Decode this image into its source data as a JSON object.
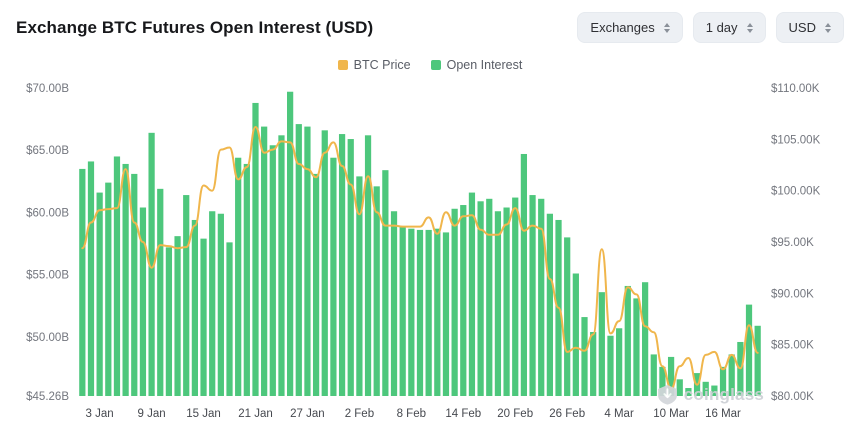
{
  "header": {
    "title": "Exchange BTC Futures Open Interest (USD)",
    "controls": [
      {
        "label": "Exchanges"
      },
      {
        "label": "1 day"
      },
      {
        "label": "USD"
      }
    ]
  },
  "legend": [
    {
      "label": "BTC Price",
      "color": "#F0B64C"
    },
    {
      "label": "Open Interest",
      "color": "#4DC77C"
    }
  ],
  "watermark": "coinglass",
  "chart_data": {
    "type": "combo",
    "title": "Exchange BTC Futures Open Interest (USD)",
    "legend_position": "top",
    "grid": false,
    "x": [
      "1 Jan",
      "2 Jan",
      "3 Jan",
      "4 Jan",
      "5 Jan",
      "6 Jan",
      "7 Jan",
      "8 Jan",
      "9 Jan",
      "10 Jan",
      "11 Jan",
      "12 Jan",
      "13 Jan",
      "14 Jan",
      "15 Jan",
      "16 Jan",
      "17 Jan",
      "18 Jan",
      "19 Jan",
      "20 Jan",
      "21 Jan",
      "22 Jan",
      "23 Jan",
      "24 Jan",
      "25 Jan",
      "26 Jan",
      "27 Jan",
      "28 Jan",
      "29 Jan",
      "30 Jan",
      "31 Jan",
      "1 Feb",
      "2 Feb",
      "3 Feb",
      "4 Feb",
      "5 Feb",
      "6 Feb",
      "7 Feb",
      "8 Feb",
      "9 Feb",
      "10 Feb",
      "11 Feb",
      "12 Feb",
      "13 Feb",
      "14 Feb",
      "15 Feb",
      "16 Feb",
      "17 Feb",
      "18 Feb",
      "19 Feb",
      "20 Feb",
      "21 Feb",
      "22 Feb",
      "23 Feb",
      "24 Feb",
      "25 Feb",
      "26 Feb",
      "27 Feb",
      "28 Feb",
      "1 Mar",
      "2 Mar",
      "3 Mar",
      "4 Mar",
      "5 Mar",
      "6 Mar",
      "7 Mar",
      "8 Mar",
      "9 Mar",
      "10 Mar",
      "11 Mar",
      "12 Mar",
      "13 Mar",
      "14 Mar",
      "15 Mar",
      "16 Mar",
      "17 Mar",
      "18 Mar",
      "19 Mar",
      "20 Mar"
    ],
    "x_tick_labels": [
      "3 Jan",
      "9 Jan",
      "15 Jan",
      "21 Jan",
      "27 Jan",
      "2 Feb",
      "8 Feb",
      "14 Feb",
      "20 Feb",
      "26 Feb",
      "4 Mar",
      "10 Mar",
      "16 Mar"
    ],
    "left_axis": {
      "min": 45.26,
      "max": 70,
      "unit": "USD billions",
      "tick_values": [
        70,
        65,
        60,
        55,
        50,
        45.26
      ],
      "tick_labels": [
        "$70.00B",
        "$65.00B",
        "$60.00B",
        "$55.00B",
        "$50.00B",
        "$45.26B"
      ]
    },
    "right_axis": {
      "min": 80,
      "max": 110,
      "unit": "USD thousands",
      "tick_values": [
        110,
        105,
        100,
        95,
        90,
        85,
        80
      ],
      "tick_labels": [
        "$110.00K",
        "$105.00K",
        "$100.00K",
        "$95.00K",
        "$90.00K",
        "$85.00K",
        "$80.00K"
      ]
    },
    "series": [
      {
        "name": "Open Interest",
        "type": "bar",
        "axis": "left",
        "color": "#4DC77C",
        "unit": "USD B",
        "values": [
          63.5,
          64.1,
          61.6,
          62.4,
          64.5,
          63.9,
          63.1,
          60.4,
          66.4,
          61.9,
          57.2,
          58.1,
          61.4,
          59.4,
          57.9,
          60.1,
          59.9,
          57.6,
          64.4,
          63.9,
          68.8,
          66.9,
          65.4,
          66.2,
          69.7,
          67.1,
          66.9,
          63.1,
          66.6,
          64.4,
          66.3,
          65.9,
          62.9,
          66.2,
          62.1,
          63.4,
          60.1,
          58.9,
          58.7,
          58.6,
          58.6,
          58.7,
          58.4,
          60.3,
          60.6,
          61.6,
          60.9,
          61.1,
          60.1,
          60.4,
          61.2,
          64.7,
          61.4,
          61.1,
          59.9,
          59.4,
          58.0,
          55.1,
          51.6,
          50.4,
          53.6,
          50.1,
          50.7,
          54.1,
          53.1,
          54.4,
          48.6,
          47.6,
          48.4,
          46.6,
          45.9,
          47.1,
          46.4,
          46.1,
          47.6,
          48.6,
          49.6,
          52.6,
          50.9
        ]
      },
      {
        "name": "BTC Price",
        "type": "line",
        "axis": "right",
        "color": "#F0B64C",
        "unit": "USD K",
        "values": [
          94.4,
          96.9,
          98.1,
          98.2,
          98.3,
          102.1,
          96.9,
          95.0,
          92.5,
          94.7,
          94.6,
          94.4,
          94.5,
          96.6,
          100.5,
          100.0,
          104.0,
          104.2,
          101.1,
          102.3,
          106.2,
          103.7,
          104.0,
          104.8,
          104.7,
          102.6,
          102.1,
          101.3,
          103.7,
          104.7,
          102.4,
          100.6,
          97.7,
          101.4,
          97.9,
          96.6,
          96.6,
          96.5,
          96.5,
          96.5,
          97.4,
          95.8,
          97.9,
          96.6,
          97.5,
          97.6,
          96.2,
          95.7,
          95.7,
          96.7,
          98.3,
          96.1,
          96.6,
          96.3,
          91.4,
          88.6,
          84.3,
          84.7,
          84.4,
          86.0,
          94.3,
          86.1,
          87.3,
          90.6,
          89.9,
          86.8,
          86.2,
          82.9,
          80.7,
          82.9,
          83.7,
          81.1,
          84.0,
          84.3,
          82.6,
          84.0,
          82.7,
          86.9,
          84.2
        ]
      }
    ]
  }
}
